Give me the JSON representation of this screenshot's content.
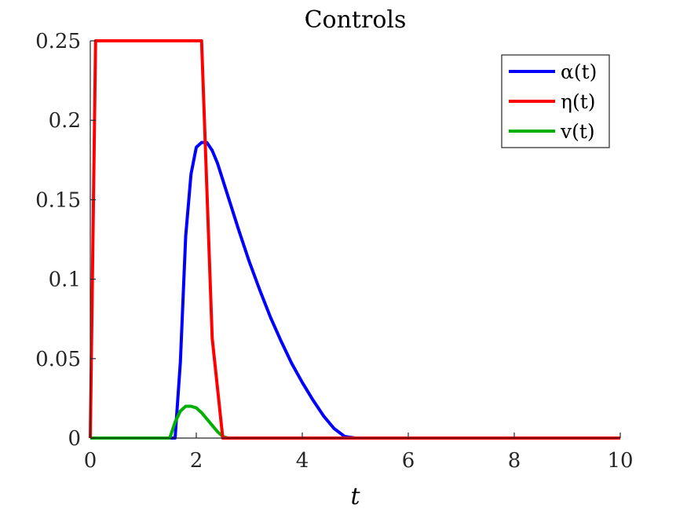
{
  "chart_data": {
    "type": "line",
    "title": "Controls",
    "xlabel": "t",
    "ylabel": "",
    "xlim": [
      0,
      10
    ],
    "ylim": [
      0,
      0.25
    ],
    "xticks": [
      0,
      2,
      4,
      6,
      8,
      10
    ],
    "xtick_labels": [
      "0",
      "2",
      "4",
      "6",
      "8",
      "10"
    ],
    "yticks": [
      0,
      0.05,
      0.1,
      0.15,
      0.2,
      0.25
    ],
    "ytick_labels": [
      "0",
      "0.05",
      "0.1",
      "0.15",
      "0.2",
      "0.25"
    ],
    "grid": false,
    "legend_position": "top-right",
    "series": [
      {
        "name": "α(t)",
        "color": "#0000ff",
        "x": [
          0,
          1.6,
          1.7,
          1.8,
          1.9,
          2.0,
          2.1,
          2.2,
          2.3,
          2.4,
          2.6,
          2.8,
          3.0,
          3.2,
          3.4,
          3.6,
          3.8,
          4.0,
          4.2,
          4.4,
          4.6,
          4.8,
          5.0,
          10
        ],
        "y": [
          0,
          0,
          0.048,
          0.127,
          0.166,
          0.183,
          0.186,
          0.186,
          0.181,
          0.173,
          0.152,
          0.131,
          0.111,
          0.093,
          0.076,
          0.061,
          0.047,
          0.035,
          0.024,
          0.014,
          0.006,
          0.001,
          0,
          0
        ]
      },
      {
        "name": "η(t)",
        "color": "#ff0000",
        "x": [
          0,
          0.1,
          2.1,
          2.3,
          2.5,
          10
        ],
        "y": [
          0,
          0.25,
          0.25,
          0.063,
          0,
          0
        ]
      },
      {
        "name": "v(t)",
        "color": "#00b000",
        "x": [
          0,
          1.5,
          1.6,
          1.7,
          1.8,
          1.9,
          2.0,
          2.1,
          2.2,
          2.3,
          2.4,
          2.5,
          2.6,
          10
        ],
        "y": [
          0,
          0,
          0.01,
          0.017,
          0.02,
          0.02,
          0.019,
          0.016,
          0.012,
          0.008,
          0.004,
          0.001,
          0,
          0
        ]
      }
    ]
  }
}
